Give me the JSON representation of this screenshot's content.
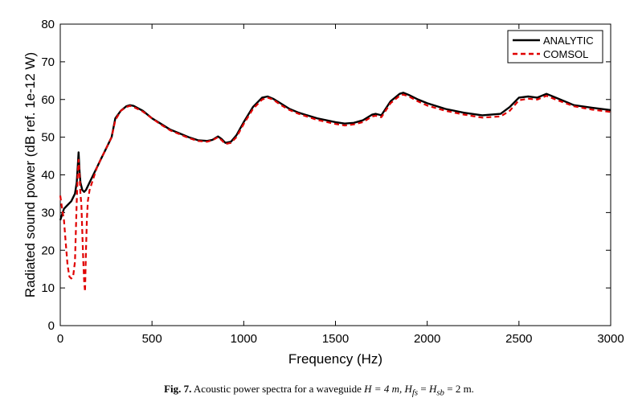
{
  "chart_data": {
    "type": "line",
    "xlabel": "Frequency (Hz)",
    "ylabel": "Radiated sound power (dB ref. 1e-12 W)",
    "xlim": [
      0,
      3000
    ],
    "ylim": [
      0,
      80
    ],
    "xticks": [
      0,
      500,
      1000,
      1500,
      2000,
      2500,
      3000
    ],
    "yticks": [
      0,
      10,
      20,
      30,
      40,
      50,
      60,
      70,
      80
    ],
    "grid": false,
    "legend_position": "top-right",
    "series": [
      {
        "name": "ANALYTIC",
        "color": "#000000",
        "style": "solid",
        "x": [
          0,
          20,
          40,
          60,
          80,
          90,
          95,
          100,
          105,
          110,
          120,
          130,
          140,
          160,
          180,
          200,
          220,
          250,
          280,
          300,
          330,
          360,
          380,
          400,
          450,
          500,
          550,
          600,
          650,
          700,
          750,
          800,
          830,
          860,
          880,
          900,
          930,
          960,
          1000,
          1050,
          1100,
          1130,
          1160,
          1200,
          1250,
          1300,
          1400,
          1500,
          1550,
          1600,
          1650,
          1700,
          1720,
          1750,
          1800,
          1850,
          1870,
          1900,
          1950,
          2000,
          2100,
          2200,
          2300,
          2400,
          2450,
          2500,
          2550,
          2600,
          2650,
          2700,
          2800,
          2900,
          3000
        ],
        "y": [
          28,
          31,
          32,
          33,
          35,
          38,
          42,
          46,
          41,
          38,
          36,
          35.5,
          36,
          38,
          40,
          42,
          44,
          47,
          50,
          55,
          57,
          58.2,
          58.5,
          58.3,
          57,
          55,
          53.5,
          52,
          51,
          50,
          49.2,
          49,
          49.3,
          50.2,
          49.5,
          48.5,
          48.8,
          50.5,
          54,
          58,
          60.5,
          60.8,
          60.2,
          59,
          57.5,
          56.5,
          55,
          54,
          53.6,
          53.8,
          54.5,
          56,
          56.2,
          55.8,
          59.5,
          61.5,
          61.8,
          61.2,
          60,
          59,
          57.5,
          56.5,
          55.8,
          56.2,
          58,
          60.5,
          60.8,
          60.5,
          61.5,
          60.5,
          58.5,
          57.8,
          57.2
        ]
      },
      {
        "name": "COMSOL",
        "color": "#e00000",
        "style": "dashed",
        "x": [
          0,
          10,
          20,
          30,
          40,
          50,
          60,
          70,
          80,
          85,
          90,
          95,
          100,
          105,
          110,
          115,
          120,
          125,
          130,
          135,
          140,
          145,
          150,
          160,
          180,
          200,
          220,
          250,
          280,
          300,
          330,
          360,
          380,
          400,
          450,
          500,
          550,
          600,
          650,
          700,
          750,
          800,
          830,
          860,
          880,
          900,
          930,
          960,
          1000,
          1050,
          1100,
          1130,
          1160,
          1200,
          1250,
          1300,
          1400,
          1500,
          1550,
          1600,
          1650,
          1700,
          1720,
          1750,
          1800,
          1850,
          1870,
          1900,
          1950,
          2000,
          2100,
          2200,
          2300,
          2400,
          2450,
          2500,
          2550,
          2600,
          2650,
          2700,
          2800,
          2900,
          3000
        ],
        "y": [
          34.5,
          31,
          28,
          22,
          16,
          13,
          12.5,
          13,
          17,
          25,
          33,
          40,
          44,
          40,
          35,
          32,
          25,
          18,
          12,
          9,
          20,
          28,
          33,
          36,
          39,
          42,
          44,
          47,
          50,
          54.5,
          57,
          58,
          58.3,
          58,
          56.8,
          55,
          53.3,
          51.8,
          50.8,
          49.8,
          49,
          48.8,
          49.2,
          50,
          49.2,
          48.2,
          48.5,
          50,
          53.5,
          57.5,
          60,
          60.5,
          60,
          58.6,
          57.2,
          56.2,
          54.6,
          53.5,
          53.1,
          53.4,
          54,
          55.5,
          55.7,
          55.3,
          59,
          61,
          61.3,
          60.8,
          59.5,
          58.4,
          57,
          56,
          55.2,
          55.5,
          57,
          59.8,
          60.2,
          60,
          61,
          60,
          58.2,
          57.3,
          56.7
        ]
      }
    ]
  },
  "caption": {
    "label": "Fig. 7.",
    "text": "Acoustic power spectra for a waveguide",
    "h_expr": "H = 4 m,",
    "hfs_expr": "H",
    "hfs_sub": "fs",
    "eq": " = ",
    "hsb_expr": "H",
    "hsb_sub": "sb",
    "tail": " = 2 m."
  }
}
